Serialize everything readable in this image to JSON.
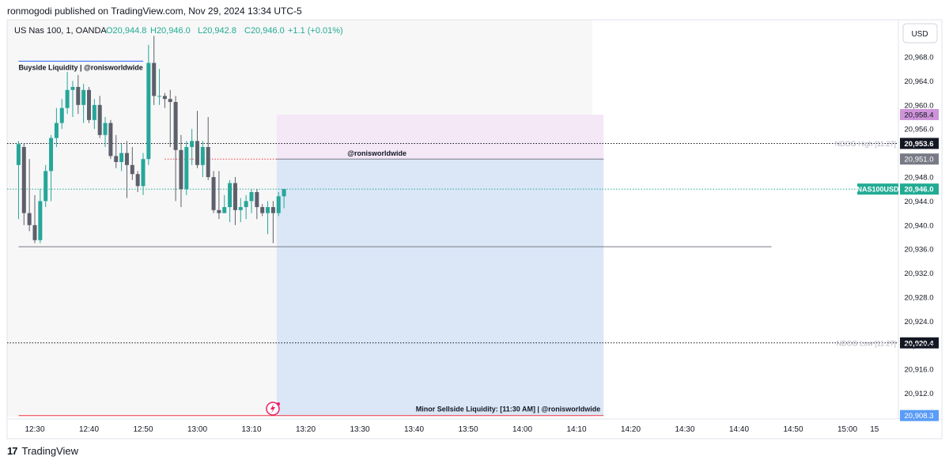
{
  "header": {
    "published": "ronmogodi published on TradingView.com, Nov 29, 2024 13:34 UTC-5"
  },
  "footer": {
    "brand": "TradingView",
    "logo_glyph": "17"
  },
  "currency_button": "USD",
  "chart_data": {
    "type": "candlestick",
    "symbol_line": {
      "name": "US Nas 100, 1, OANDA",
      "open": "O20,944.8",
      "high": "H20,946.0",
      "low": "L20,942.8",
      "close": "C20,946.0",
      "change": "+1.1 (+0.01%)"
    },
    "ylim": [
      20905.5,
      20972.5
    ],
    "y_ticks": [
      20968.0,
      20964.0,
      20960.0,
      20956.0,
      20948.0,
      20944.0,
      20940.0,
      20936.0,
      20932.0,
      20928.0,
      20924.0,
      20920.0,
      20916.0,
      20912.0
    ],
    "y_tick_labels": [
      "20,968.0",
      "20,964.0",
      "20,960.0",
      "20,956.0",
      "20,948.0",
      "20,944.0",
      "20,940.0",
      "20,936.0",
      "20,932.0",
      "20,928.0",
      "20,924.0",
      "20,920.0",
      "20,916.0",
      "20,912.0"
    ],
    "x_ticks": [
      "12:30",
      "12:40",
      "12:50",
      "13:00",
      "13:10",
      "13:20",
      "13:30",
      "13:40",
      "13:50",
      "14:00",
      "14:10",
      "14:20",
      "14:30",
      "14:40",
      "14:50",
      "15:00",
      "15"
    ],
    "x_tick_minutes": [
      0,
      10,
      20,
      30,
      40,
      50,
      60,
      70,
      80,
      90,
      100,
      110,
      120,
      130,
      140,
      150,
      155
    ],
    "candles": [
      {
        "t": -3,
        "o": 20950.0,
        "h": 20954.0,
        "l": 20941.0,
        "c": 20953.5
      },
      {
        "t": -2,
        "o": 20953.0,
        "h": 20953.6,
        "l": 20940.0,
        "c": 20942.0
      },
      {
        "t": -1,
        "o": 20942.0,
        "h": 20951.0,
        "l": 20939.0,
        "c": 20940.0
      },
      {
        "t": 0,
        "o": 20940.0,
        "h": 20945.0,
        "l": 20937.0,
        "c": 20937.5
      },
      {
        "t": 1,
        "o": 20937.5,
        "h": 20946.0,
        "l": 20937.0,
        "c": 20944.0
      },
      {
        "t": 2,
        "o": 20944.0,
        "h": 20950.0,
        "l": 20943.0,
        "c": 20949.0
      },
      {
        "t": 3,
        "o": 20949.0,
        "h": 20955.0,
        "l": 20944.0,
        "c": 20954.5
      },
      {
        "t": 4,
        "o": 20954.5,
        "h": 20959.5,
        "l": 20953.0,
        "c": 20957.0
      },
      {
        "t": 5,
        "o": 20957.0,
        "h": 20961.0,
        "l": 20956.0,
        "c": 20959.5
      },
      {
        "t": 6,
        "o": 20959.5,
        "h": 20965.5,
        "l": 20958.5,
        "c": 20962.5
      },
      {
        "t": 7,
        "o": 20962.5,
        "h": 20964.0,
        "l": 20958.0,
        "c": 20963.0
      },
      {
        "t": 8,
        "o": 20963.0,
        "h": 20965.0,
        "l": 20958.5,
        "c": 20960.0
      },
      {
        "t": 9,
        "o": 20960.0,
        "h": 20963.5,
        "l": 20957.0,
        "c": 20962.5
      },
      {
        "t": 10,
        "o": 20962.5,
        "h": 20963.0,
        "l": 20957.0,
        "c": 20957.5
      },
      {
        "t": 11,
        "o": 20957.5,
        "h": 20961.0,
        "l": 20956.0,
        "c": 20960.0
      },
      {
        "t": 12,
        "o": 20960.0,
        "h": 20961.5,
        "l": 20954.5,
        "c": 20955.0
      },
      {
        "t": 13,
        "o": 20955.0,
        "h": 20958.0,
        "l": 20953.0,
        "c": 20957.0
      },
      {
        "t": 14,
        "o": 20957.0,
        "h": 20957.5,
        "l": 20951.0,
        "c": 20951.5
      },
      {
        "t": 15,
        "o": 20951.5,
        "h": 20955.0,
        "l": 20949.5,
        "c": 20950.5
      },
      {
        "t": 16,
        "o": 20950.5,
        "h": 20953.5,
        "l": 20949.0,
        "c": 20952.0
      },
      {
        "t": 17,
        "o": 20952.0,
        "h": 20954.0,
        "l": 20944.5,
        "c": 20950.0
      },
      {
        "t": 18,
        "o": 20950.0,
        "h": 20953.0,
        "l": 20947.5,
        "c": 20948.5
      },
      {
        "t": 19,
        "o": 20948.5,
        "h": 20949.0,
        "l": 20945.5,
        "c": 20946.5
      },
      {
        "t": 20,
        "o": 20946.5,
        "h": 20952.0,
        "l": 20945.0,
        "c": 20951.0
      },
      {
        "t": 21,
        "o": 20951.0,
        "h": 20970.0,
        "l": 20950.0,
        "c": 20967.0
      },
      {
        "t": 22,
        "o": 20967.0,
        "h": 20971.5,
        "l": 20960.0,
        "c": 20961.5
      },
      {
        "t": 23,
        "o": 20961.5,
        "h": 20966.0,
        "l": 20960.0,
        "c": 20961.5
      },
      {
        "t": 24,
        "o": 20961.5,
        "h": 20962.0,
        "l": 20959.5,
        "c": 20961.0
      },
      {
        "t": 25,
        "o": 20961.0,
        "h": 20962.5,
        "l": 20953.0,
        "c": 20960.5
      },
      {
        "t": 26,
        "o": 20960.5,
        "h": 20961.5,
        "l": 20944.0,
        "c": 20952.5
      },
      {
        "t": 27,
        "o": 20952.5,
        "h": 20955.0,
        "l": 20943.0,
        "c": 20946.0
      },
      {
        "t": 28,
        "o": 20946.0,
        "h": 20954.0,
        "l": 20945.0,
        "c": 20953.0
      },
      {
        "t": 29,
        "o": 20953.0,
        "h": 20956.0,
        "l": 20950.0,
        "c": 20954.0
      },
      {
        "t": 30,
        "o": 20954.0,
        "h": 20959.0,
        "l": 20949.5,
        "c": 20950.0
      },
      {
        "t": 31,
        "o": 20950.0,
        "h": 20954.0,
        "l": 20948.0,
        "c": 20953.0
      },
      {
        "t": 32,
        "o": 20953.0,
        "h": 20958.0,
        "l": 20947.5,
        "c": 20948.0
      },
      {
        "t": 33,
        "o": 20948.0,
        "h": 20949.0,
        "l": 20942.0,
        "c": 20942.5
      },
      {
        "t": 34,
        "o": 20942.5,
        "h": 20949.0,
        "l": 20941.0,
        "c": 20942.0
      },
      {
        "t": 35,
        "o": 20942.0,
        "h": 20945.0,
        "l": 20942.0,
        "c": 20943.0
      },
      {
        "t": 36,
        "o": 20943.0,
        "h": 20947.5,
        "l": 20940.5,
        "c": 20947.0
      },
      {
        "t": 37,
        "o": 20947.0,
        "h": 20948.0,
        "l": 20940.0,
        "c": 20942.5
      },
      {
        "t": 38,
        "o": 20942.5,
        "h": 20944.5,
        "l": 20940.5,
        "c": 20943.0
      },
      {
        "t": 39,
        "o": 20943.0,
        "h": 20945.0,
        "l": 20941.0,
        "c": 20944.0
      },
      {
        "t": 40,
        "o": 20944.0,
        "h": 20946.0,
        "l": 20942.0,
        "c": 20945.5
      },
      {
        "t": 41,
        "o": 20945.5,
        "h": 20946.0,
        "l": 20941.0,
        "c": 20943.0
      },
      {
        "t": 42,
        "o": 20943.0,
        "h": 20943.5,
        "l": 20941.5,
        "c": 20942.0
      },
      {
        "t": 43,
        "o": 20942.0,
        "h": 20944.0,
        "l": 20938.5,
        "c": 20943.0
      },
      {
        "t": 44,
        "o": 20943.0,
        "h": 20944.0,
        "l": 20937.0,
        "c": 20942.0
      },
      {
        "t": 45,
        "o": 20942.0,
        "h": 20945.5,
        "l": 20941.5,
        "c": 20944.8
      },
      {
        "t": 46,
        "o": 20944.8,
        "h": 20946.0,
        "l": 20942.8,
        "c": 20946.0
      }
    ],
    "levels": [
      {
        "name": "NDOG High [11.27]",
        "price": 20953.6,
        "label": "20,953.6",
        "style": "dotted",
        "color": "#131722"
      },
      {
        "name": "NDOG Low [11.27]",
        "price": 20920.4,
        "label": "20,920.4",
        "style": "dotted",
        "color": "#131722"
      },
      {
        "name": "NAS100USD",
        "price": 20946.0,
        "label": "20,946.0",
        "style": "dotted",
        "color": "#22ab94"
      }
    ],
    "price_labels": [
      {
        "price": 20958.4,
        "label": "20,958.4",
        "color": "#ce93d8"
      },
      {
        "price": 20951.0,
        "label": "20,951.0",
        "color": "#787b86"
      },
      {
        "price": 20908.3,
        "label": "20,908.3",
        "color": "#5b9cf6"
      }
    ],
    "position_box": {
      "t_start": 47,
      "t_end": 105,
      "entry": 20951.0,
      "target_top": 20958.4,
      "stop_bottom": 20908.3,
      "label": "@ronisworldwide"
    },
    "annotations": [
      {
        "text": "Buyside Liquidity | @ronisworldwide",
        "price": 20967.3,
        "t_start": -3,
        "t_end": 20
      },
      {
        "text": "Minor Sellside Liquidity: [11:30 AM] | @ronisworldwide",
        "price": 20908.3,
        "t_start": -3,
        "t_end": 105
      },
      {
        "text": "",
        "price": 20936.4,
        "t_start": -3,
        "t_end": 136
      }
    ],
    "session_break_minute": 105
  }
}
